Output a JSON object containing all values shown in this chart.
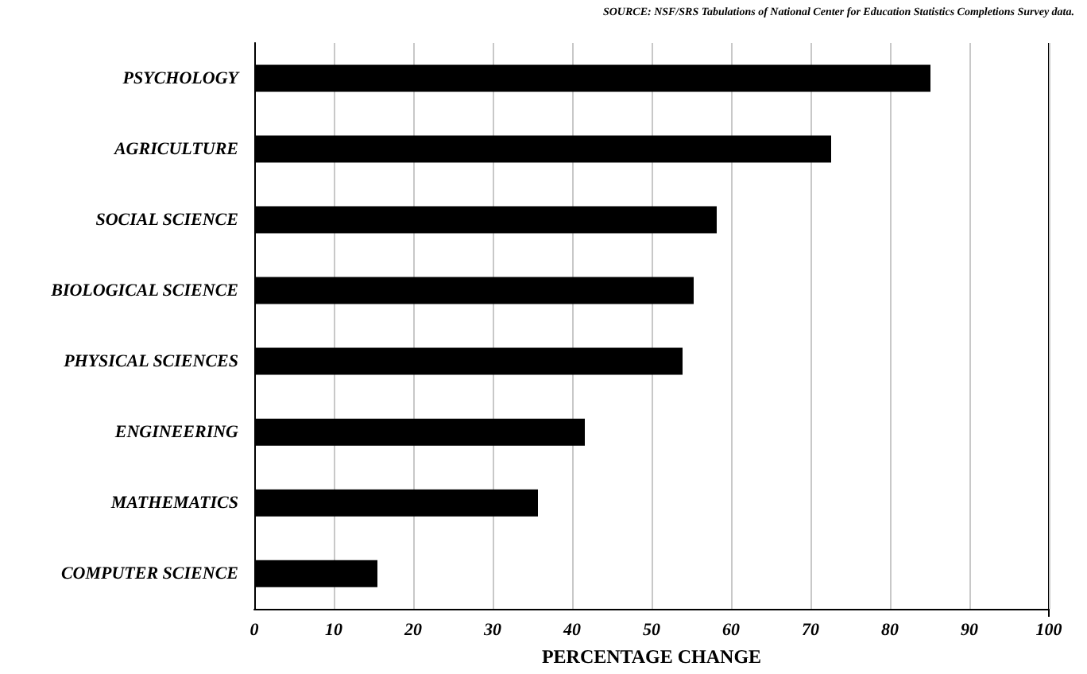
{
  "chart_data": {
    "type": "bar",
    "orientation": "horizontal",
    "xlabel": "PERCENTAGE CHANGE",
    "annotations": [
      "SOURCE: NSF/SRS Tabulations of National Center for Education Statistics Completions Survey data."
    ],
    "categories": [
      "PSYCHOLOGY",
      "AGRICULTURE",
      "SOCIAL SCIENCE",
      "BIOLOGICAL SCIENCE",
      "PHYSICAL SCIENCES",
      "ENGINEERING",
      "MATHEMATICS",
      "COMPUTER SCIENCE"
    ],
    "values": [
      85.1,
      72.6,
      58.2,
      55.3,
      53.9,
      41.6,
      35.7,
      15.5
    ],
    "color": "#000000",
    "xlim": [
      0,
      100
    ],
    "xticks": [
      0,
      10,
      20,
      30,
      40,
      50,
      60,
      70,
      80,
      90,
      100
    ],
    "grid": "x"
  }
}
